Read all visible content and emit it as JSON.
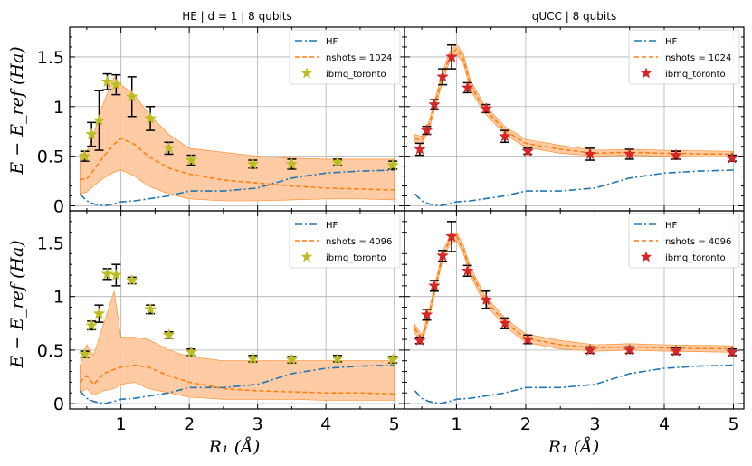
{
  "chart_data": [
    {
      "type": "line",
      "title": "HE | d = 1 | 8 qubits",
      "xlabel": "R₁ (Å)",
      "ylabel": "E − E_ref (Ha)",
      "xlim": [
        0.25,
        5.15
      ],
      "ylim": [
        -0.05,
        1.8
      ],
      "xticks": [
        "1",
        "2",
        "3",
        "4",
        "5"
      ],
      "yticks": [
        "0",
        "0.5",
        "1",
        "1.5"
      ],
      "legend": [
        "HF",
        "nshots = 1024",
        "ibmq_toronto"
      ],
      "legend_position": "upper right",
      "hf": {
        "x": [
          0.4,
          0.5,
          0.6,
          0.75,
          0.9,
          1.0,
          1.2,
          1.4,
          1.7,
          2.0,
          2.5,
          3.0,
          3.5,
          4.0,
          4.5,
          5.0
        ],
        "y": [
          0.12,
          0.05,
          0.02,
          0.0,
          0.02,
          0.04,
          0.05,
          0.07,
          0.1,
          0.15,
          0.15,
          0.18,
          0.28,
          0.33,
          0.35,
          0.36
        ]
      },
      "sim": {
        "x": [
          0.4,
          0.5,
          0.6,
          0.75,
          0.9,
          1.0,
          1.2,
          1.4,
          1.7,
          2.0,
          2.5,
          3.0,
          3.5,
          4.0,
          4.5,
          5.0
        ],
        "y": [
          0.27,
          0.27,
          0.36,
          0.5,
          0.62,
          0.68,
          0.62,
          0.5,
          0.38,
          0.32,
          0.26,
          0.23,
          0.2,
          0.18,
          0.17,
          0.16
        ],
        "lower": [
          0.12,
          0.14,
          0.2,
          0.28,
          0.34,
          0.36,
          0.3,
          0.2,
          0.12,
          0.07,
          0.05,
          0.05,
          0.06,
          0.07,
          0.07,
          0.06
        ],
        "upper": [
          0.52,
          0.55,
          0.72,
          1.05,
          1.3,
          1.22,
          1.12,
          0.93,
          0.72,
          0.58,
          0.54,
          0.5,
          0.48,
          0.47,
          0.47,
          0.47
        ]
      },
      "device": {
        "x": [
          0.47,
          0.57,
          0.68,
          0.8,
          0.93,
          1.16,
          1.43,
          1.7,
          2.03,
          2.93,
          3.5,
          4.17,
          4.98
        ],
        "y": [
          0.5,
          0.72,
          0.86,
          1.25,
          1.22,
          1.1,
          0.88,
          0.58,
          0.46,
          0.42,
          0.42,
          0.44,
          0.41
        ],
        "err": [
          0.05,
          0.12,
          0.3,
          0.08,
          0.1,
          0.2,
          0.12,
          0.06,
          0.05,
          0.04,
          0.05,
          0.03,
          0.04
        ]
      }
    },
    {
      "type": "line",
      "title": "qUCC | 8 qubits",
      "xlabel": "R₁ (Å)",
      "xlim": [
        0.25,
        5.15
      ],
      "ylim": [
        -0.05,
        1.8
      ],
      "xticks": [
        "1",
        "2",
        "3",
        "4",
        "5"
      ],
      "legend": [
        "HF",
        "nshots = 1024",
        "ibmq_toronto"
      ],
      "legend_position": "upper right",
      "hf": {
        "x": [
          0.4,
          0.5,
          0.6,
          0.75,
          0.9,
          1.0,
          1.2,
          1.4,
          1.7,
          2.0,
          2.5,
          3.0,
          3.5,
          4.0,
          4.5,
          5.0
        ],
        "y": [
          0.12,
          0.05,
          0.02,
          0.0,
          0.02,
          0.04,
          0.05,
          0.07,
          0.1,
          0.15,
          0.15,
          0.18,
          0.28,
          0.33,
          0.35,
          0.36
        ]
      },
      "sim": {
        "x": [
          0.4,
          0.5,
          0.6,
          0.7,
          0.8,
          0.9,
          1.0,
          1.1,
          1.2,
          1.4,
          1.7,
          2.0,
          2.5,
          3.0,
          3.5,
          4.0,
          5.0
        ],
        "y": [
          0.68,
          0.66,
          0.8,
          1.05,
          1.3,
          1.5,
          1.58,
          1.48,
          1.22,
          0.98,
          0.76,
          0.63,
          0.57,
          0.53,
          0.54,
          0.53,
          0.52
        ],
        "lower": [
          0.64,
          0.62,
          0.76,
          1.0,
          1.25,
          1.45,
          1.53,
          1.43,
          1.17,
          0.94,
          0.72,
          0.59,
          0.53,
          0.5,
          0.51,
          0.5,
          0.49
        ],
        "upper": [
          0.72,
          0.7,
          0.84,
          1.1,
          1.35,
          1.55,
          1.63,
          1.53,
          1.27,
          1.02,
          0.8,
          0.67,
          0.61,
          0.56,
          0.57,
          0.56,
          0.55
        ]
      },
      "device": {
        "x": [
          0.47,
          0.57,
          0.68,
          0.8,
          0.93,
          1.16,
          1.43,
          1.7,
          2.03,
          2.93,
          3.5,
          4.17,
          4.98
        ],
        "y": [
          0.57,
          0.76,
          1.02,
          1.3,
          1.5,
          1.19,
          0.98,
          0.7,
          0.55,
          0.52,
          0.52,
          0.51,
          0.48
        ],
        "err": [
          0.06,
          0.04,
          0.05,
          0.08,
          0.12,
          0.05,
          0.04,
          0.06,
          0.03,
          0.06,
          0.05,
          0.04,
          0.03
        ]
      }
    },
    {
      "type": "line",
      "title": "",
      "xlabel": "R₁ (Å)",
      "ylabel": "E − E_ref (Ha)",
      "xlim": [
        0.25,
        5.15
      ],
      "ylim": [
        -0.05,
        1.8
      ],
      "xticks": [
        "1",
        "2",
        "3",
        "4",
        "5"
      ],
      "yticks": [
        "0",
        "0.5",
        "1",
        "1.5"
      ],
      "legend": [
        "HF",
        "nshots = 4096",
        "ibmq_toronto"
      ],
      "legend_position": "upper right",
      "hf": {
        "x": [
          0.4,
          0.5,
          0.6,
          0.75,
          0.9,
          1.0,
          1.2,
          1.4,
          1.7,
          2.0,
          2.5,
          3.0,
          3.5,
          4.0,
          4.5,
          5.0
        ],
        "y": [
          0.12,
          0.05,
          0.02,
          0.0,
          0.02,
          0.04,
          0.05,
          0.07,
          0.1,
          0.15,
          0.15,
          0.18,
          0.28,
          0.33,
          0.35,
          0.36
        ]
      },
      "sim": {
        "x": [
          0.4,
          0.5,
          0.6,
          0.75,
          0.9,
          1.0,
          1.2,
          1.4,
          1.7,
          2.0,
          2.5,
          3.0,
          3.5,
          4.0,
          4.5,
          5.0
        ],
        "y": [
          0.2,
          0.26,
          0.18,
          0.28,
          0.32,
          0.34,
          0.36,
          0.34,
          0.26,
          0.2,
          0.14,
          0.12,
          0.11,
          0.1,
          0.1,
          0.09
        ],
        "lower": [
          0.1,
          0.14,
          0.08,
          0.12,
          0.14,
          0.18,
          0.2,
          0.14,
          0.1,
          0.06,
          0.04,
          0.04,
          0.04,
          0.03,
          0.03,
          0.03
        ],
        "upper": [
          0.35,
          0.55,
          0.45,
          0.75,
          1.05,
          0.62,
          0.62,
          0.6,
          0.5,
          0.44,
          0.4,
          0.4,
          0.4,
          0.4,
          0.4,
          0.4
        ]
      },
      "device": {
        "x": [
          0.47,
          0.57,
          0.68,
          0.8,
          0.93,
          1.16,
          1.43,
          1.7,
          2.03,
          2.93,
          3.5,
          4.17,
          4.98
        ],
        "y": [
          0.46,
          0.73,
          0.84,
          1.21,
          1.2,
          1.15,
          0.88,
          0.64,
          0.48,
          0.42,
          0.41,
          0.42,
          0.41
        ],
        "err": [
          0.03,
          0.04,
          0.08,
          0.05,
          0.1,
          0.03,
          0.04,
          0.03,
          0.03,
          0.03,
          0.03,
          0.03,
          0.03
        ]
      }
    },
    {
      "type": "line",
      "title": "",
      "xlabel": "R₁ (Å)",
      "xlim": [
        0.25,
        5.15
      ],
      "ylim": [
        -0.05,
        1.8
      ],
      "xticks": [
        "1",
        "2",
        "3",
        "4",
        "5"
      ],
      "legend": [
        "HF",
        "nshots = 4096",
        "ibmq_toronto"
      ],
      "legend_position": "upper right",
      "hf": {
        "x": [
          0.4,
          0.5,
          0.6,
          0.75,
          0.9,
          1.0,
          1.2,
          1.4,
          1.7,
          2.0,
          2.5,
          3.0,
          3.5,
          4.0,
          4.5,
          5.0
        ],
        "y": [
          0.12,
          0.05,
          0.02,
          0.0,
          0.02,
          0.04,
          0.05,
          0.07,
          0.1,
          0.15,
          0.15,
          0.18,
          0.28,
          0.33,
          0.35,
          0.36
        ]
      },
      "sim": {
        "x": [
          0.4,
          0.5,
          0.6,
          0.7,
          0.8,
          0.9,
          1.0,
          1.1,
          1.2,
          1.4,
          1.7,
          2.0,
          2.5,
          3.0,
          3.5,
          4.0,
          5.0
        ],
        "y": [
          0.7,
          0.6,
          0.82,
          1.1,
          1.38,
          1.52,
          1.56,
          1.44,
          1.24,
          0.98,
          0.76,
          0.61,
          0.55,
          0.52,
          0.53,
          0.52,
          0.51
        ],
        "lower": [
          0.66,
          0.56,
          0.78,
          1.06,
          1.34,
          1.48,
          1.52,
          1.4,
          1.2,
          0.94,
          0.72,
          0.57,
          0.51,
          0.49,
          0.5,
          0.49,
          0.48
        ],
        "upper": [
          0.74,
          0.64,
          0.86,
          1.14,
          1.42,
          1.56,
          1.6,
          1.48,
          1.28,
          1.02,
          0.8,
          0.65,
          0.59,
          0.55,
          0.56,
          0.55,
          0.54
        ]
      },
      "device": {
        "x": [
          0.47,
          0.57,
          0.68,
          0.8,
          0.93,
          1.16,
          1.43,
          1.7,
          2.03,
          2.93,
          3.5,
          4.17,
          4.98
        ],
        "y": [
          0.59,
          0.83,
          1.1,
          1.38,
          1.56,
          1.24,
          0.97,
          0.75,
          0.6,
          0.5,
          0.5,
          0.49,
          0.48
        ],
        "err": [
          0.03,
          0.05,
          0.05,
          0.05,
          0.14,
          0.05,
          0.08,
          0.05,
          0.04,
          0.03,
          0.03,
          0.03,
          0.03
        ]
      }
    }
  ],
  "colors": {
    "hf": "#1f77b4",
    "sim": "#ff7f0e",
    "band": "#ffc9a0",
    "star_he": "#bcbd22",
    "star_qucc": "#d62728",
    "grid": "#b0b0b0"
  }
}
